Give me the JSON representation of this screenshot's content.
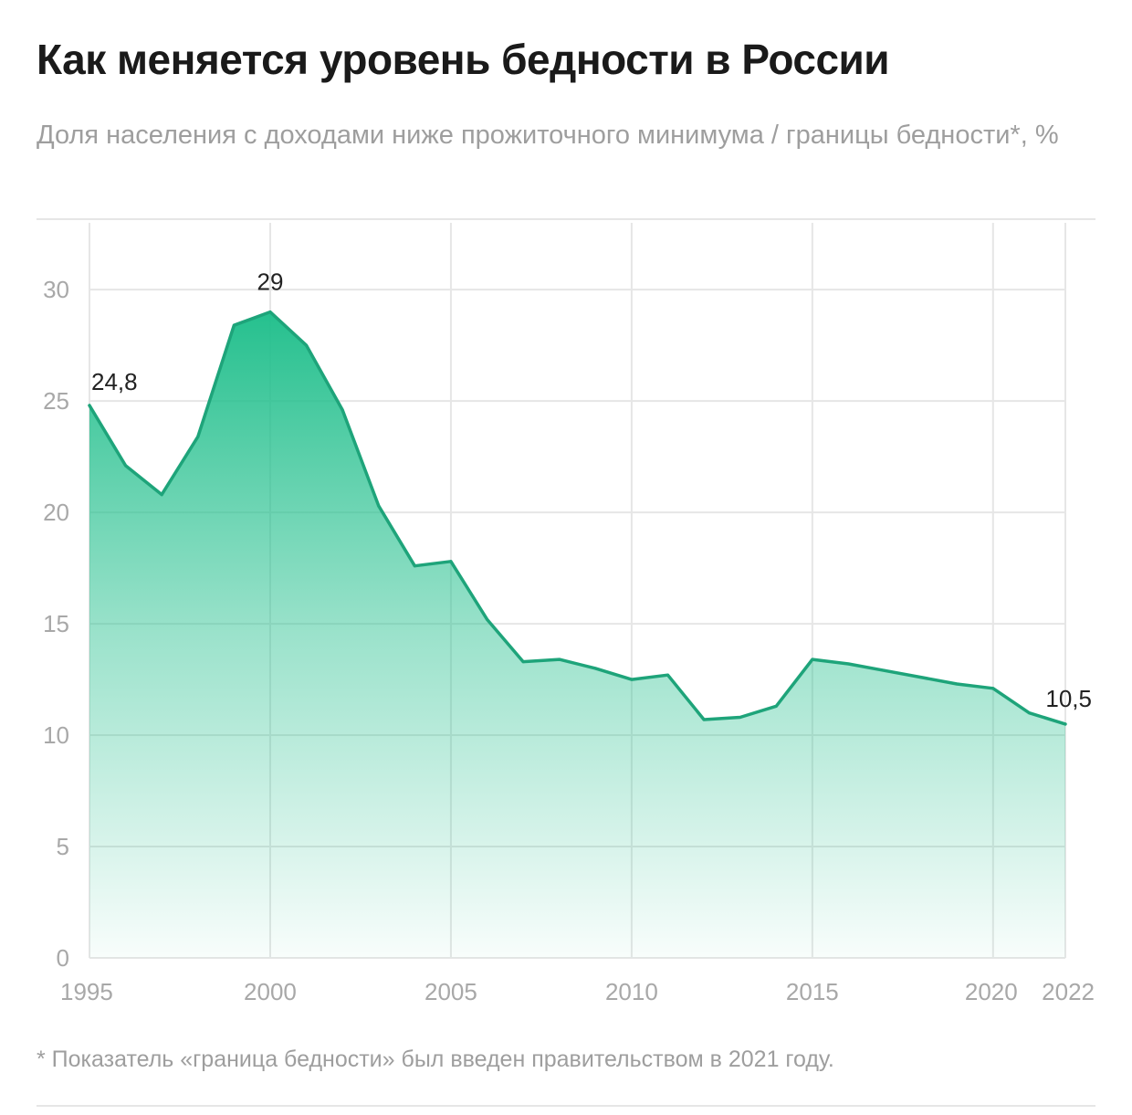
{
  "header": {
    "title": "Как меняется уровень бедности в России",
    "subtitle": "Доля населения с доходами ниже прожиточного минимума / границы бедности*, %"
  },
  "footnote": "* Показатель «граница бедности» был введен правительством в 2021 году.",
  "colors": {
    "line": "#1ea47a",
    "fill": "#21bf8c",
    "grid": "#e6e6e6",
    "tick": "#a8a8a8",
    "label": "#222222"
  },
  "chart_data": {
    "type": "area",
    "title": "Как меняется уровень бедности в России",
    "subtitle": "Доля населения с доходами ниже прожиточного минимума / границы бедности*, %",
    "xlabel": "",
    "ylabel": "",
    "x": [
      1995,
      1996,
      1997,
      1998,
      1999,
      2000,
      2001,
      2002,
      2003,
      2004,
      2005,
      2006,
      2007,
      2008,
      2009,
      2010,
      2011,
      2012,
      2013,
      2014,
      2015,
      2016,
      2017,
      2018,
      2019,
      2020,
      2021,
      2022
    ],
    "values": [
      24.8,
      22.1,
      20.8,
      23.4,
      28.4,
      29.0,
      27.5,
      24.6,
      20.3,
      17.6,
      17.8,
      15.2,
      13.3,
      13.4,
      13.0,
      12.5,
      12.7,
      10.7,
      10.8,
      11.3,
      13.4,
      13.2,
      12.9,
      12.6,
      12.3,
      12.1,
      11.0,
      10.5
    ],
    "xlim": [
      1995,
      2022
    ],
    "ylim": [
      0,
      33
    ],
    "xticks": [
      {
        "value": 1995,
        "label": "1995"
      },
      {
        "value": 2000,
        "label": "2000"
      },
      {
        "value": 2005,
        "label": "2005"
      },
      {
        "value": 2010,
        "label": "2010"
      },
      {
        "value": 2015,
        "label": "2015"
      },
      {
        "value": 2020,
        "label": "2020"
      },
      {
        "value": 2022,
        "label": "2022"
      }
    ],
    "yticks": [
      {
        "value": 0,
        "label": "0"
      },
      {
        "value": 5,
        "label": "5"
      },
      {
        "value": 10,
        "label": "10"
      },
      {
        "value": 15,
        "label": "15"
      },
      {
        "value": 20,
        "label": "20"
      },
      {
        "value": 25,
        "label": "25"
      },
      {
        "value": 30,
        "label": "30"
      }
    ],
    "annotations": [
      {
        "x": 1995,
        "y": 24.8,
        "text": "24,8"
      },
      {
        "x": 2000,
        "y": 29.0,
        "text": "29"
      },
      {
        "x": 2022,
        "y": 10.5,
        "text": "10,5"
      }
    ],
    "grid": true,
    "legend": "none"
  }
}
